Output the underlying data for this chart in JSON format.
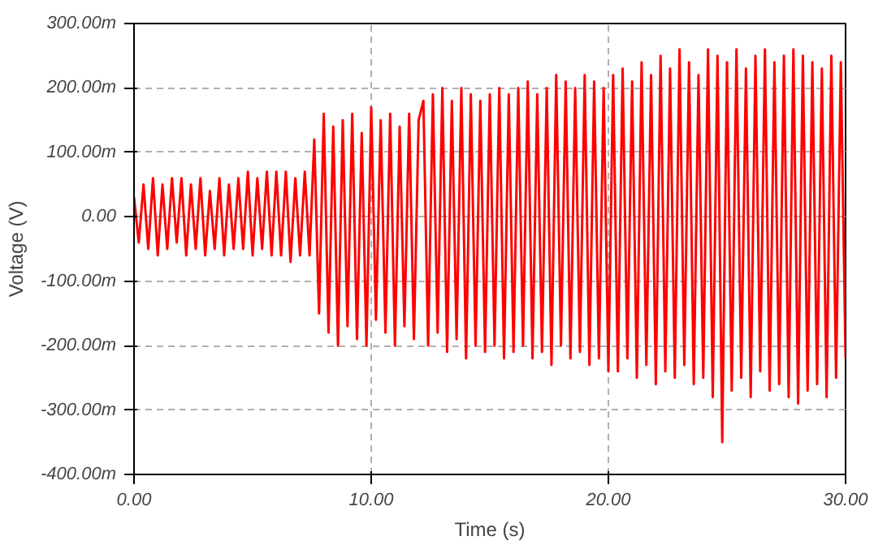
{
  "chart_data": {
    "type": "line",
    "xlabel": "Time (s)",
    "ylabel": "Voltage (V)",
    "grid": true,
    "xlim": [
      0,
      30
    ],
    "ylim": [
      -400,
      300
    ],
    "xticks": [
      {
        "value": 0,
        "label": "0.00"
      },
      {
        "value": 10,
        "label": "10.00"
      },
      {
        "value": 20,
        "label": "20.00"
      },
      {
        "value": 30,
        "label": "30.00"
      }
    ],
    "yticks": [
      {
        "value": -400,
        "label": "-400.00m"
      },
      {
        "value": -300,
        "label": "-300.00m"
      },
      {
        "value": -200,
        "label": "-200.00m"
      },
      {
        "value": -100,
        "label": "-100.00m"
      },
      {
        "value": 0,
        "label": "0.00"
      },
      {
        "value": 100,
        "label": "100.00m"
      },
      {
        "value": 200,
        "label": "200.00m"
      },
      {
        "value": 300,
        "label": "300.00m"
      }
    ],
    "x": [
      0,
      0.2,
      0.4,
      0.6,
      0.8,
      1,
      1.2,
      1.4,
      1.6,
      1.8,
      2,
      2.2,
      2.4,
      2.6,
      2.8,
      3,
      3.2,
      3.4,
      3.6,
      3.8,
      4,
      4.2,
      4.4,
      4.6,
      4.8,
      5,
      5.2,
      5.4,
      5.6,
      5.8,
      6,
      6.2,
      6.4,
      6.6,
      6.8,
      7,
      7.2,
      7.4,
      7.6,
      7.8,
      8,
      8.2,
      8.4,
      8.6,
      8.8,
      9,
      9.2,
      9.4,
      9.6,
      9.8,
      10,
      10.2,
      10.4,
      10.6,
      10.8,
      11,
      11.2,
      11.4,
      11.6,
      11.8,
      12,
      12.2,
      12.4,
      12.6,
      12.8,
      13,
      13.2,
      13.4,
      13.6,
      13.8,
      14,
      14.2,
      14.4,
      14.6,
      14.8,
      15,
      15.2,
      15.4,
      15.6,
      15.8,
      16,
      16.2,
      16.4,
      16.6,
      16.8,
      17,
      17.2,
      17.4,
      17.6,
      17.8,
      18,
      18.2,
      18.4,
      18.6,
      18.8,
      19,
      19.2,
      19.4,
      19.6,
      19.8,
      20,
      20.2,
      20.4,
      20.6,
      20.8,
      21,
      21.2,
      21.4,
      21.6,
      21.8,
      22,
      22.2,
      22.4,
      22.6,
      22.8,
      23,
      23.2,
      23.4,
      23.6,
      23.8,
      24,
      24.2,
      24.4,
      24.6,
      24.8,
      25,
      25.2,
      25.4,
      25.6,
      25.8,
      26,
      26.2,
      26.4,
      26.6,
      26.8,
      27,
      27.2,
      27.4,
      27.6,
      27.8,
      28,
      28.2,
      28.4,
      28.6,
      28.8,
      29,
      29.2,
      29.4,
      29.6,
      29.8,
      30
    ],
    "series": [
      {
        "color": "#ff0000",
        "values": [
          30,
          -40,
          50,
          -50,
          60,
          -60,
          50,
          -50,
          60,
          -40,
          60,
          -60,
          50,
          -50,
          60,
          -60,
          40,
          -50,
          60,
          -60,
          50,
          -50,
          60,
          -50,
          70,
          -60,
          60,
          -50,
          70,
          -60,
          70,
          -60,
          70,
          -70,
          60,
          -60,
          70,
          -60,
          120,
          -150,
          160,
          -180,
          140,
          -200,
          150,
          -170,
          160,
          -190,
          130,
          -200,
          170,
          -160,
          150,
          -180,
          160,
          -200,
          140,
          -170,
          160,
          -190,
          150,
          180,
          -200,
          190,
          -180,
          200,
          -210,
          180,
          -190,
          200,
          -220,
          190,
          -200,
          180,
          -210,
          190,
          -200,
          200,
          -220,
          190,
          -210,
          200,
          -200,
          210,
          -220,
          190,
          -210,
          200,
          -230,
          220,
          -200,
          210,
          -220,
          200,
          -210,
          220,
          -230,
          210,
          -220,
          200,
          -240,
          220,
          -240,
          230,
          -220,
          210,
          -250,
          240,
          -230,
          220,
          -260,
          250,
          -240,
          230,
          -250,
          260,
          -230,
          240,
          -260,
          220,
          -250,
          260,
          -280,
          250,
          -350,
          240,
          -270,
          260,
          -250,
          230,
          -280,
          250,
          -240,
          260,
          -270,
          240,
          -260,
          250,
          -280,
          260,
          -290,
          250,
          -270,
          240,
          -260,
          230,
          -280,
          250,
          -250,
          240,
          -220
        ]
      }
    ]
  }
}
